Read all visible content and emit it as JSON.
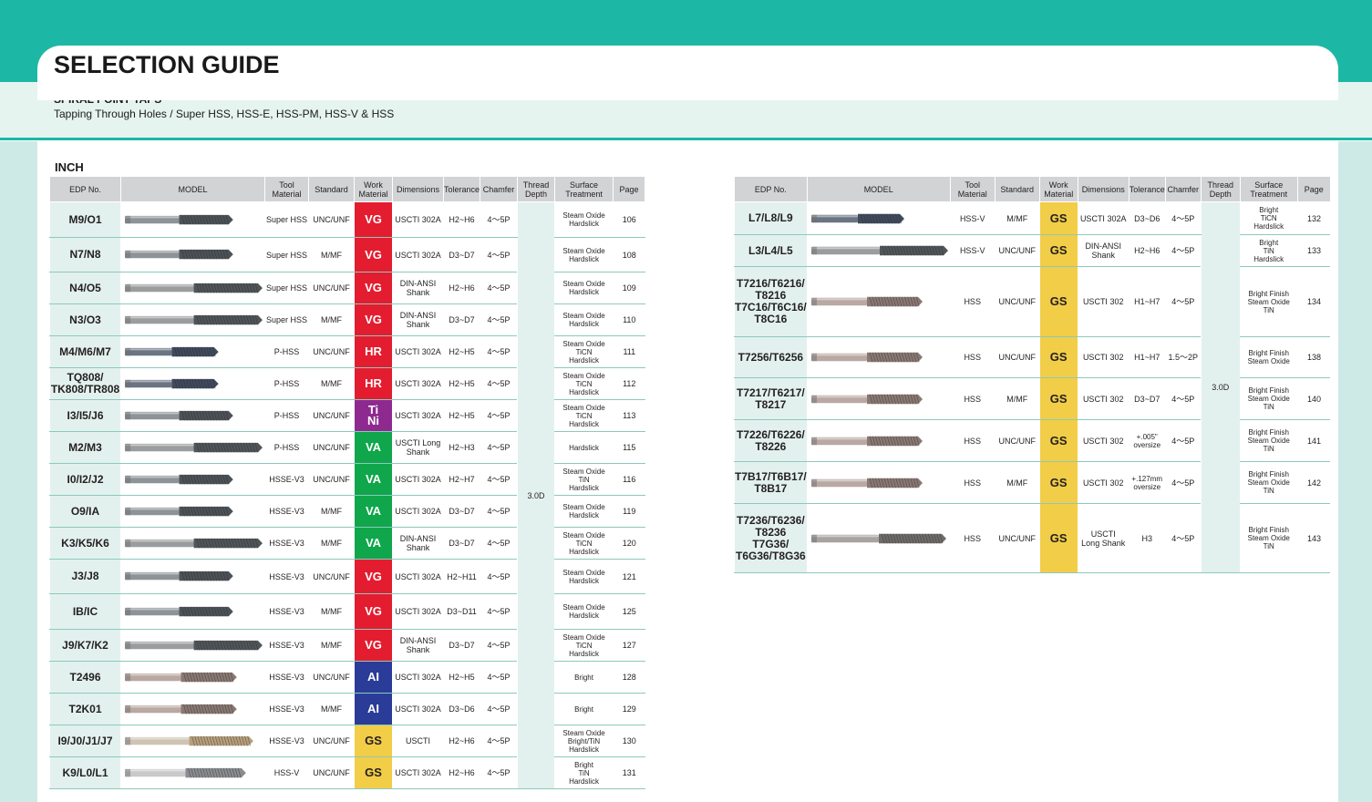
{
  "header": {
    "title": "SELECTION GUIDE",
    "subtitle": "SPIRAL POINT TAPS",
    "description": "Tapping Through Holes / Super HSS, HSS-E, HSS-PM, HSS-V & HSS",
    "section": "INCH"
  },
  "colors": {
    "teal": "#1db8a5",
    "VG": "#e31d2f",
    "HR": "#e31d2f",
    "TiNi": "#8e2a8f",
    "VA": "#10a64b",
    "AI": "#2a3c97",
    "GS": "#f2cd47"
  },
  "columns": {
    "edp": "EDP No.",
    "model": "MODEL",
    "tool1": "Tool",
    "tool2": "Material",
    "standard": "Standard",
    "work1": "Work",
    "work2": "Material",
    "dimensions": "Dimensions",
    "tolerance": "Tolerance",
    "chamfer": "Chamfer",
    "thread1": "Thread",
    "thread2": "Depth",
    "surface1": "Surface",
    "surface2": "Treatment",
    "page": "Page"
  },
  "left_table": {
    "thread_depth": "3.0D",
    "rows": [
      {
        "edp": [
          "M9/O1"
        ],
        "tool": "Super HSS",
        "std": "UNC/UNF",
        "wm": "VG",
        "dim": [
          "USCTI 302A"
        ],
        "tol": [
          "H2~H6"
        ],
        "ch": "4～5P",
        "surf": [
          "Steam Oxide",
          "Hardslick"
        ],
        "page": "106",
        "tap": "spiral-dark"
      },
      {
        "edp": [
          "N7/N8"
        ],
        "tool": "Super HSS",
        "std": "M/MF",
        "wm": "VG",
        "dim": [
          "USCTI 302A"
        ],
        "tol": [
          "D3~D7"
        ],
        "ch": "4～5P",
        "surf": [
          "Steam Oxide",
          "Hardslick"
        ],
        "page": "108",
        "tap": "spiral-dark"
      },
      {
        "edp": [
          "N4/O5"
        ],
        "tool": "Super HSS",
        "std": "UNC/UNF",
        "wm": "VG",
        "dim": [
          "DIN-ANSI",
          "Shank"
        ],
        "tol": [
          "H2~H6"
        ],
        "ch": "4～5P",
        "surf": [
          "Steam Oxide",
          "Hardslick"
        ],
        "page": "109",
        "tap": "spiral-long"
      },
      {
        "edp": [
          "N3/O3"
        ],
        "tool": "Super HSS",
        "std": "M/MF",
        "wm": "VG",
        "dim": [
          "DIN-ANSI",
          "Shank"
        ],
        "tol": [
          "D3~D7"
        ],
        "ch": "4～5P",
        "surf": [
          "Steam Oxide",
          "Hardslick"
        ],
        "page": "110",
        "tap": "spiral-long"
      },
      {
        "edp": [
          "M4/M6/M7"
        ],
        "tool": "P-HSS",
        "std": "UNC/UNF",
        "wm": "HR",
        "dim": [
          "USCTI 302A"
        ],
        "tol": [
          "H2~H5"
        ],
        "ch": "4～5P",
        "surf": [
          "Steam Oxide",
          "TiCN",
          "Hardslick"
        ],
        "page": "111",
        "tap": "spiral-blue"
      },
      {
        "edp": [
          "TQ808/",
          "TK808/TR808"
        ],
        "tool": "P-HSS",
        "std": "M/MF",
        "wm": "HR",
        "dim": [
          "USCTI 302A"
        ],
        "tol": [
          "H2~H5"
        ],
        "ch": "4～5P",
        "surf": [
          "Steam Oxide",
          "TiCN",
          "Hardslick"
        ],
        "page": "112",
        "tap": "spiral-blue"
      },
      {
        "edp": [
          "I3/I5/J6"
        ],
        "tool": "P-HSS",
        "std": "UNC/UNF",
        "wm": "TiNi",
        "wm_lines": [
          "Ti",
          "Ni"
        ],
        "dim": [
          "USCTI 302A"
        ],
        "tol": [
          "H2~H5"
        ],
        "ch": "4～5P",
        "surf": [
          "Steam Oxide",
          "TiCN",
          "Hardslick"
        ],
        "page": "113",
        "tap": "spiral-dark"
      },
      {
        "edp": [
          "M2/M3"
        ],
        "tool": "P-HSS",
        "std": "UNC/UNF",
        "wm": "VA",
        "dim": [
          "USCTI Long",
          "Shank"
        ],
        "tol": [
          "H2~H3"
        ],
        "ch": "4～5P",
        "surf": [
          "Hardslick"
        ],
        "page": "115",
        "tap": "spiral-long"
      },
      {
        "edp": [
          "I0/I2/J2"
        ],
        "tool": "HSSE-V3",
        "std": "UNC/UNF",
        "wm": "VA",
        "dim": [
          "USCTI 302A"
        ],
        "tol": [
          "H2~H7"
        ],
        "ch": "4～5P",
        "surf": [
          "Steam Oxide",
          "TiN",
          "Hardslick"
        ],
        "page": "116",
        "tap": "spiral-dark"
      },
      {
        "edp": [
          "O9/IA"
        ],
        "tool": "HSSE-V3",
        "std": "M/MF",
        "wm": "VA",
        "dim": [
          "USCTI 302A"
        ],
        "tol": [
          "D3~D7"
        ],
        "ch": "4～5P",
        "surf": [
          "Steam Oxide",
          "Hardslick"
        ],
        "page": "119",
        "tap": "spiral-dark"
      },
      {
        "edp": [
          "K3/K5/K6"
        ],
        "tool": "HSSE-V3",
        "std": "M/MF",
        "wm": "VA",
        "dim": [
          "DIN-ANSI",
          "Shank"
        ],
        "tol": [
          "D3~D7"
        ],
        "ch": "4～5P",
        "surf": [
          "Steam Oxide",
          "TiCN",
          "Hardslick"
        ],
        "page": "120",
        "tap": "spiral-long"
      },
      {
        "edp": [
          "J3/J8"
        ],
        "tool": "HSSE-V3",
        "std": "UNC/UNF",
        "wm": "VG",
        "dim": [
          "USCTI 302A"
        ],
        "tol": [
          "H2~H11"
        ],
        "ch": "4～5P",
        "surf": [
          "Steam Oxide",
          "Hardslick"
        ],
        "page": "121",
        "tap": "spiral-dark"
      },
      {
        "edp": [
          "IB/IC"
        ],
        "tool": "HSSE-V3",
        "std": "M/MF",
        "wm": "VG",
        "dim": [
          "USCTI 302A"
        ],
        "tol": [
          "D3~D11"
        ],
        "ch": "4～5P",
        "surf": [
          "Steam Oxide",
          "Hardslick"
        ],
        "page": "125",
        "tap": "spiral-dark"
      },
      {
        "edp": [
          "J9/K7/K2"
        ],
        "tool": "HSSE-V3",
        "std": "M/MF",
        "wm": "VG",
        "dim": [
          "DIN-ANSI",
          "Shank"
        ],
        "tol": [
          "D3~D7"
        ],
        "ch": "4～5P",
        "surf": [
          "Steam Oxide",
          "TiCN",
          "Hardslick"
        ],
        "page": "127",
        "tap": "spiral-long"
      },
      {
        "edp": [
          "T2496"
        ],
        "tool": "HSSE-V3",
        "std": "UNC/UNF",
        "wm": "AI",
        "dim": [
          "USCTI 302A"
        ],
        "tol": [
          "H2~H5"
        ],
        "ch": "4～5P",
        "surf": [
          "Bright"
        ],
        "page": "128",
        "tap": "bright-short"
      },
      {
        "edp": [
          "T2K01"
        ],
        "tool": "HSSE-V3",
        "std": "M/MF",
        "wm": "AI",
        "dim": [
          "USCTI 302A"
        ],
        "tol": [
          "D3~D6"
        ],
        "ch": "4～5P",
        "surf": [
          "Bright"
        ],
        "page": "129",
        "tap": "bright-short"
      },
      {
        "edp": [
          "I9/J0/J1/J7"
        ],
        "tool": "HSSE-V3",
        "std": "UNC/UNF",
        "wm": "GS",
        "dim": [
          "USCTI"
        ],
        "tol": [
          "H2~H6"
        ],
        "ch": "4～5P",
        "surf": [
          "Steam Oxide",
          "Bright/TiN",
          "Hardslick"
        ],
        "page": "130",
        "tap": "gold"
      },
      {
        "edp": [
          "K9/L0/L1"
        ],
        "tool": "HSS-V",
        "std": "UNC/UNF",
        "wm": "GS",
        "dim": [
          "USCTI 302A"
        ],
        "tol": [
          "H2~H6"
        ],
        "ch": "4～5P",
        "surf": [
          "Bright",
          "TiN",
          "Hardslick"
        ],
        "page": "131",
        "tap": "silver"
      }
    ]
  },
  "right_table": {
    "thread_depth": "3.0D",
    "rows": [
      {
        "edp": [
          "L7/L8/L9"
        ],
        "tool": "HSS-V",
        "std": "M/MF",
        "wm": "GS",
        "dim": [
          "USCTI 302A"
        ],
        "tol": [
          "D3~D6"
        ],
        "ch": "4～5P",
        "surf": [
          "Bright",
          "TiCN",
          "Hardslick"
        ],
        "page": "132",
        "tap": "spiral-blue"
      },
      {
        "edp": [
          "L3/L4/L5"
        ],
        "tool": "HSS-V",
        "std": "UNC/UNF",
        "wm": "GS",
        "dim": [
          "DIN-ANSI",
          "Shank"
        ],
        "tol": [
          "H2~H6"
        ],
        "ch": "4～5P",
        "surf": [
          "Bright",
          "TiN",
          "Hardslick"
        ],
        "page": "133",
        "tap": "spiral-long"
      },
      {
        "edp": [
          "T7216/T6216/",
          "T8216",
          "T7C16/T6C16/",
          "T8C16"
        ],
        "tool": "HSS",
        "std": "UNC/UNF",
        "wm": "GS",
        "dim": [
          "USCTI 302"
        ],
        "tol": [
          "H1~H7"
        ],
        "ch": "4～5P",
        "surf": [
          "Bright Finish",
          "Steam Oxide",
          "TiN"
        ],
        "page": "134",
        "tap": "bright-short"
      },
      {
        "edp": [
          "T7256/T6256"
        ],
        "tool": "HSS",
        "std": "UNC/UNF",
        "wm": "GS",
        "dim": [
          "USCTI 302"
        ],
        "tol": [
          "H1~H7"
        ],
        "ch": "1.5～2P",
        "surf": [
          "Bright Finish",
          "Steam Oxide"
        ],
        "page": "138",
        "tap": "bright-short"
      },
      {
        "edp": [
          "T7217/T6217/",
          "T8217"
        ],
        "tool": "HSS",
        "std": "M/MF",
        "wm": "GS",
        "dim": [
          "USCTI 302"
        ],
        "tol": [
          "D3~D7"
        ],
        "ch": "4～5P",
        "surf": [
          "Bright Finish",
          "Steam Oxide",
          "TiN"
        ],
        "page": "140",
        "tap": "bright-short"
      },
      {
        "edp": [
          "T7226/T6226/",
          "T8226"
        ],
        "tool": "HSS",
        "std": "UNC/UNF",
        "wm": "GS",
        "dim": [
          "USCTI 302"
        ],
        "tol": [
          "+.005\"",
          "oversize"
        ],
        "ch": "4～5P",
        "surf": [
          "Bright Finish",
          "Steam Oxide",
          "TiN"
        ],
        "page": "141",
        "tap": "bright-short"
      },
      {
        "edp": [
          "T7B17/T6B17/",
          "T8B17"
        ],
        "tool": "HSS",
        "std": "M/MF",
        "wm": "GS",
        "dim": [
          "USCTI 302"
        ],
        "tol": [
          "+.127mm",
          "oversize"
        ],
        "ch": "4～5P",
        "surf": [
          "Bright Finish",
          "Steam Oxide",
          "TiN"
        ],
        "page": "142",
        "tap": "bright-short"
      },
      {
        "edp": [
          "T7236/T6236/",
          "T8236",
          "T7G36/",
          "T6G36/T8G36"
        ],
        "tool": "HSS",
        "std": "UNC/UNF",
        "wm": "GS",
        "dim": [
          "USCTI",
          "Long Shank"
        ],
        "tol": [
          "H3"
        ],
        "ch": "4～5P",
        "surf": [
          "Bright Finish",
          "Steam Oxide",
          "TiN"
        ],
        "page": "143",
        "tap": "bright-long"
      }
    ]
  }
}
